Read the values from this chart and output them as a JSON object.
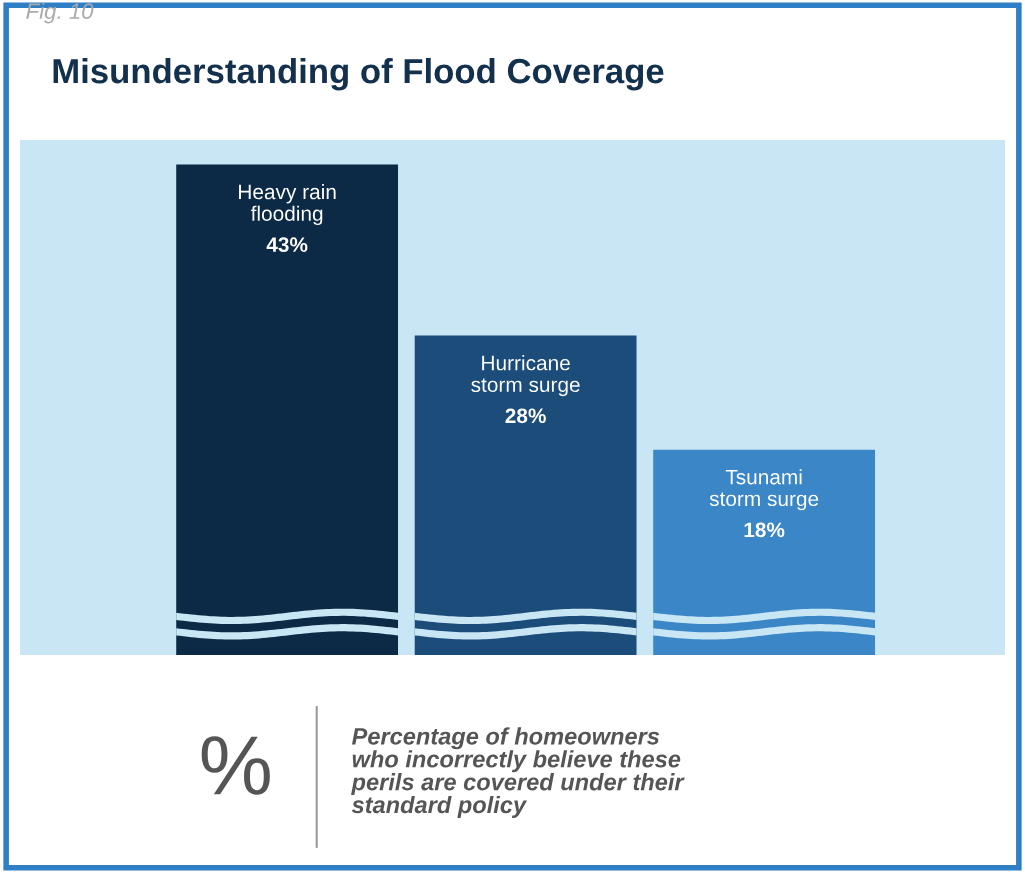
{
  "chart_data": {
    "type": "bar",
    "title": "Misunderstanding of Flood Coverage",
    "categories": [
      "Heavy rain\nflooding",
      "Hurricane\nstorm surge",
      "Tsunami\nstorm surge"
    ],
    "values": [
      43,
      28,
      18
    ],
    "colors": [
      "#0c2a46",
      "#1b4c7a",
      "#3a86c6"
    ],
    "value_labels": [
      "43%",
      "28%",
      "18%"
    ],
    "annotations": [
      "Fig. 10",
      "%",
      "Percentage of homeowners\nwho incorrectly believe these\nperils are covered under their\nstandard policy"
    ]
  }
}
